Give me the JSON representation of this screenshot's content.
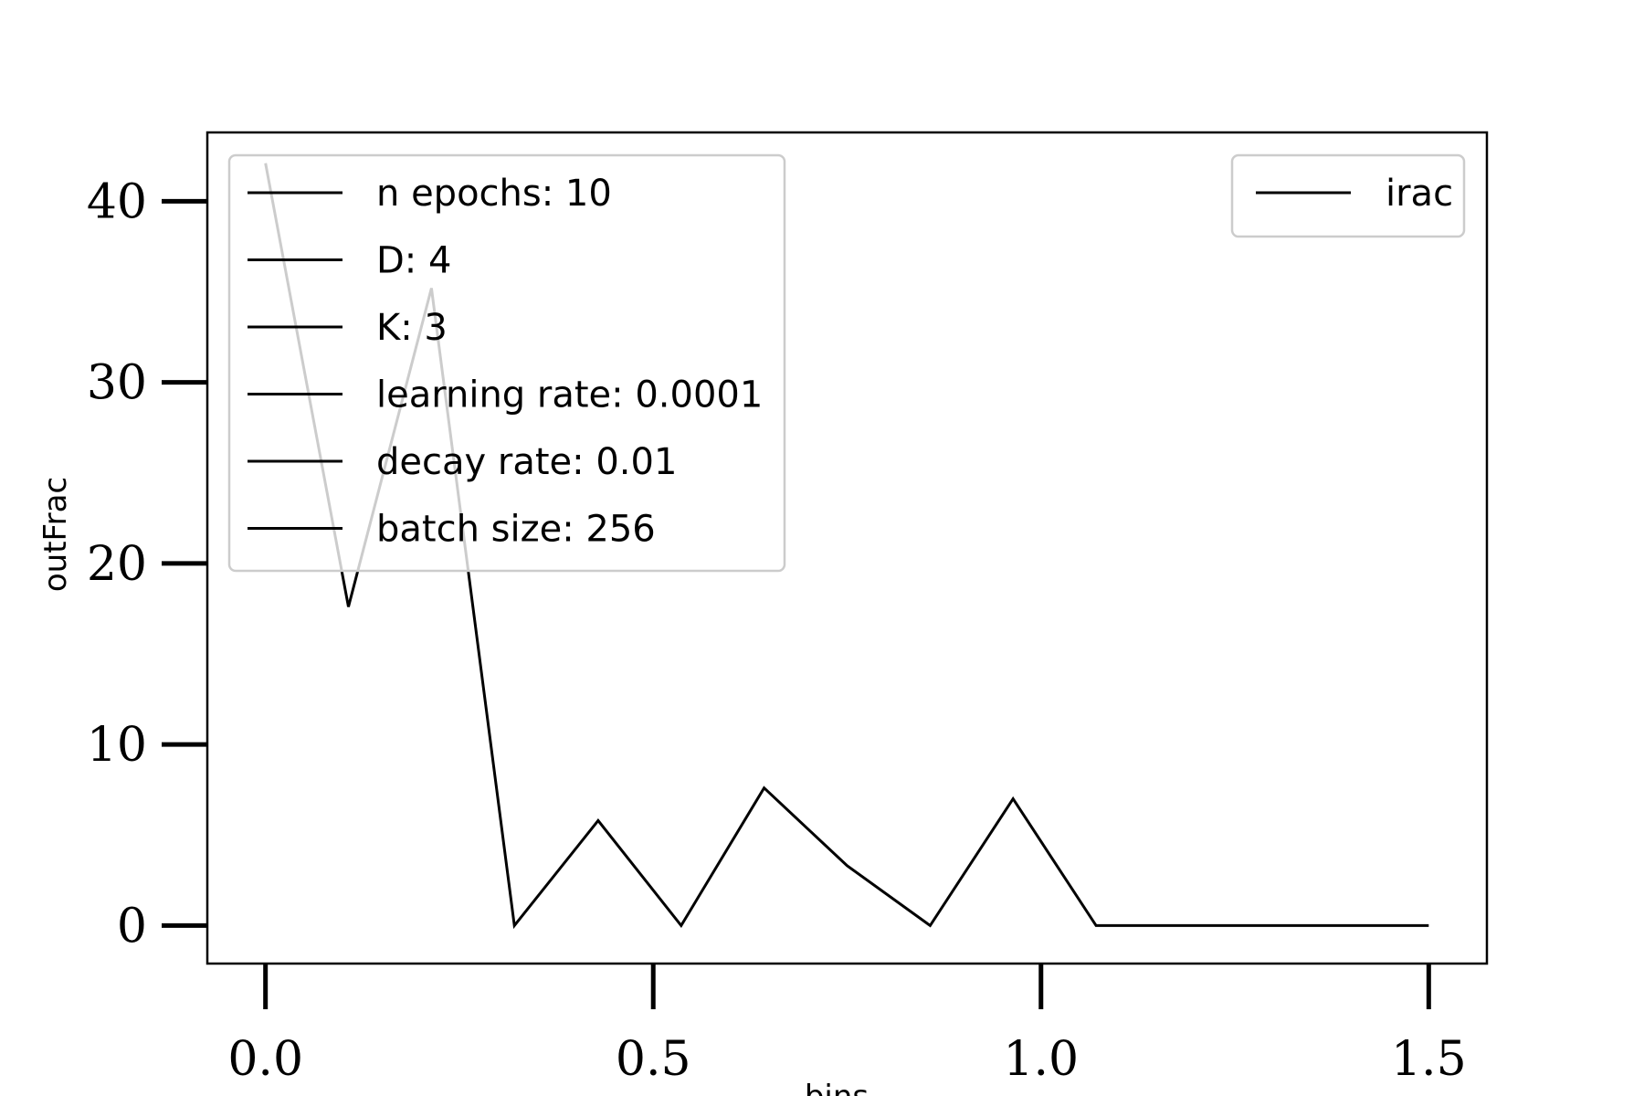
{
  "chart_data": {
    "type": "line",
    "title": "",
    "xlabel": "bins",
    "ylabel": "outFrac",
    "xlim": [
      -0.075,
      1.575
    ],
    "ylim": [
      -2.1,
      43.8
    ],
    "x_ticks": [
      "0.0",
      "0.5",
      "1.0",
      "1.5"
    ],
    "y_ticks": [
      "0",
      "10",
      "20",
      "30",
      "40"
    ],
    "grid": false,
    "series": [
      {
        "name": "irac",
        "color": "#000000",
        "x": [
          0.0,
          0.107,
          0.214,
          0.321,
          0.429,
          0.536,
          0.643,
          0.75,
          0.857,
          0.964,
          1.071,
          1.179,
          1.286,
          1.393,
          1.5
        ],
        "y": [
          42.1,
          17.6,
          35.2,
          0.0,
          5.8,
          0.0,
          7.6,
          3.3,
          0.0,
          7.0,
          0.0,
          0.0,
          0.0,
          0.0,
          0.0
        ]
      }
    ],
    "legend_series": {
      "placement": "top-right",
      "entries": [
        "irac"
      ]
    },
    "legend_params": {
      "placement": "top-left",
      "entries": [
        "n epochs: 10",
        "D: 4",
        "K: 3",
        "learning rate: 0.0001",
        "decay rate: 0.01",
        "batch size: 256"
      ]
    }
  }
}
